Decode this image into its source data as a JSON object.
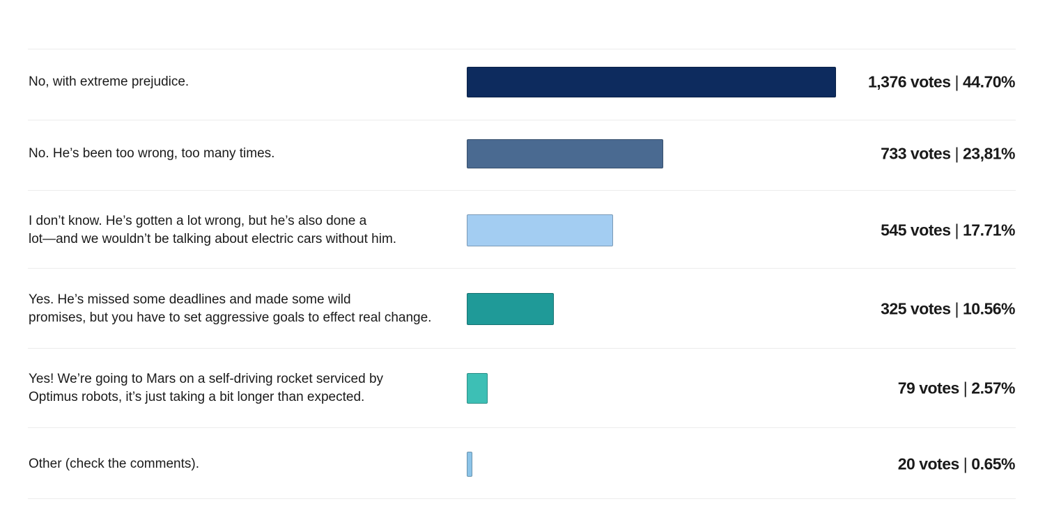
{
  "poll": {
    "separator": "|",
    "options": [
      {
        "text": [
          "No, with extreme prejudice."
        ],
        "votes": 1376,
        "votes_label": "1,376 votes",
        "percent": 44.7,
        "percent_label": "44.70%",
        "color": "#0d2b5e"
      },
      {
        "text": [
          "No. He’s been too wrong, too many times."
        ],
        "votes": 733,
        "votes_label": "733 votes",
        "percent": 23.81,
        "percent_label": "23,81%",
        "color": "#4a6a91"
      },
      {
        "text": [
          "I don’t know. He’s gotten a lot wrong, but he’s also done a",
          "lot—and we wouldn’t be talking about electric cars without him."
        ],
        "votes": 545,
        "votes_label": "545 votes",
        "percent": 17.71,
        "percent_label": "17.71%",
        "color": "#a3cdf2"
      },
      {
        "text": [
          "Yes. He’s missed some deadlines and made some wild",
          "promises, but you have to set aggressive goals to effect real change."
        ],
        "votes": 325,
        "votes_label": "325 votes",
        "percent": 10.56,
        "percent_label": "10.56%",
        "color": "#1f9a98"
      },
      {
        "text": [
          "Yes! We’re going to Mars on a self-driving rocket serviced by",
          "Optimus robots, it’s just taking a bit longer than expected."
        ],
        "votes": 79,
        "votes_label": "79 votes",
        "percent": 2.57,
        "percent_label": "2.57%",
        "color": "#3dbfb5"
      },
      {
        "text": [
          "Other (check the comments)."
        ],
        "votes": 20,
        "votes_label": "20 votes",
        "percent": 0.65,
        "percent_label": "0.65%",
        "color": "#8cc4e8"
      }
    ]
  }
}
